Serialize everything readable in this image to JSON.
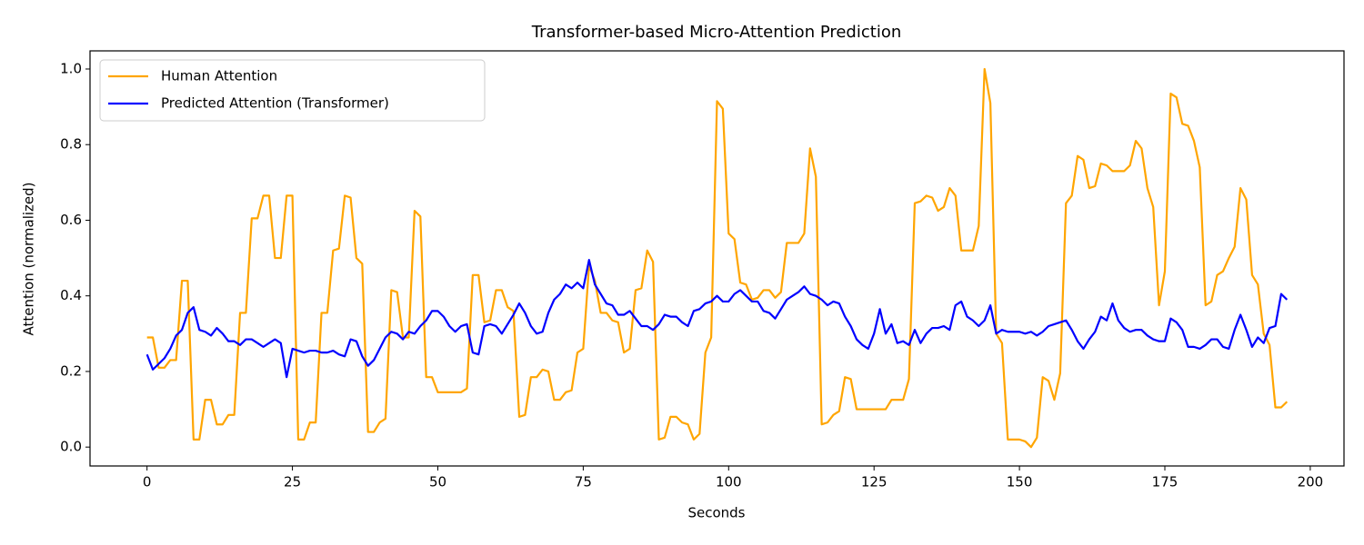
{
  "chart_data": {
    "type": "line",
    "title": "Transformer-based Micro-Attention Prediction",
    "xlabel": "Seconds",
    "ylabel": "Attention (normalized)",
    "legend": "upper left",
    "grid": false,
    "xlim": [
      -9.8,
      205.8
    ],
    "ylim": [
      -0.05,
      1.048
    ],
    "xticks": [
      0,
      25,
      50,
      75,
      100,
      125,
      150,
      175,
      200
    ],
    "yticks": [
      {
        "value": 0,
        "label": "0.0"
      },
      0.2,
      0.4,
      0.6,
      0.8,
      {
        "value": 1,
        "label": "1.0"
      }
    ],
    "x": [
      0,
      1,
      2,
      3,
      4,
      5,
      6,
      7,
      8,
      9,
      10,
      11,
      12,
      13,
      14,
      15,
      16,
      17,
      18,
      19,
      20,
      21,
      22,
      23,
      24,
      25,
      26,
      27,
      28,
      29,
      30,
      31,
      32,
      33,
      34,
      35,
      36,
      37,
      38,
      39,
      40,
      41,
      42,
      43,
      44,
      45,
      46,
      47,
      48,
      49,
      50,
      51,
      52,
      53,
      54,
      55,
      56,
      57,
      58,
      59,
      60,
      61,
      62,
      63,
      64,
      65,
      66,
      67,
      68,
      69,
      70,
      71,
      72,
      73,
      74,
      75,
      76,
      77,
      78,
      79,
      80,
      81,
      82,
      83,
      84,
      85,
      86,
      87,
      88,
      89,
      90,
      91,
      92,
      93,
      94,
      95,
      96,
      97,
      98,
      99,
      100,
      101,
      102,
      103,
      104,
      105,
      106,
      107,
      108,
      109,
      110,
      111,
      112,
      113,
      114,
      115,
      116,
      117,
      118,
      119,
      120,
      121,
      122,
      123,
      124,
      125,
      126,
      127,
      128,
      129,
      130,
      131,
      132,
      133,
      134,
      135,
      136,
      137,
      138,
      139,
      140,
      141,
      142,
      143,
      144,
      145,
      146,
      147,
      148,
      149,
      150,
      151,
      152,
      153,
      154,
      155,
      156,
      157,
      158,
      159,
      160,
      161,
      162,
      163,
      164,
      165,
      166,
      167,
      168,
      169,
      170,
      171,
      172,
      173,
      174,
      175,
      176,
      177,
      178,
      179,
      180,
      181,
      182,
      183,
      184,
      185,
      186,
      187,
      188,
      189,
      190,
      191,
      192,
      193,
      194,
      195,
      196
    ],
    "series": [
      {
        "name": "Human Attention",
        "color": "#ffa500",
        "values": [
          0.29,
          0.29,
          0.21,
          0.21,
          0.23,
          0.23,
          0.44,
          0.44,
          0.02,
          0.02,
          0.125,
          0.125,
          0.06,
          0.06,
          0.085,
          0.085,
          0.355,
          0.355,
          0.605,
          0.605,
          0.665,
          0.665,
          0.5,
          0.5,
          0.665,
          0.665,
          0.02,
          0.02,
          0.065,
          0.065,
          0.355,
          0.355,
          0.52,
          0.525,
          0.665,
          0.66,
          0.5,
          0.485,
          0.04,
          0.04,
          0.065,
          0.075,
          0.415,
          0.41,
          0.29,
          0.29,
          0.625,
          0.61,
          0.185,
          0.185,
          0.145,
          0.145,
          0.145,
          0.145,
          0.145,
          0.155,
          0.455,
          0.455,
          0.33,
          0.335,
          0.415,
          0.415,
          0.37,
          0.36,
          0.08,
          0.085,
          0.185,
          0.185,
          0.205,
          0.2,
          0.125,
          0.125,
          0.145,
          0.15,
          0.25,
          0.26,
          0.48,
          0.44,
          0.355,
          0.355,
          0.335,
          0.33,
          0.25,
          0.26,
          0.415,
          0.42,
          0.52,
          0.49,
          0.02,
          0.025,
          0.08,
          0.08,
          0.065,
          0.06,
          0.02,
          0.035,
          0.25,
          0.29,
          0.915,
          0.895,
          0.565,
          0.55,
          0.435,
          0.43,
          0.39,
          0.395,
          0.415,
          0.415,
          0.395,
          0.41,
          0.54,
          0.54,
          0.54,
          0.565,
          0.79,
          0.715,
          0.06,
          0.065,
          0.085,
          0.095,
          0.185,
          0.18,
          0.1,
          0.1,
          0.1,
          0.1,
          0.1,
          0.1,
          0.125,
          0.125,
          0.125,
          0.18,
          0.645,
          0.65,
          0.665,
          0.66,
          0.625,
          0.635,
          0.685,
          0.665,
          0.52,
          0.52,
          0.52,
          0.585,
          1.0,
          0.91,
          0.3,
          0.275,
          0.02,
          0.02,
          0.02,
          0.015,
          0.0,
          0.025,
          0.185,
          0.175,
          0.125,
          0.195,
          0.645,
          0.665,
          0.77,
          0.76,
          0.685,
          0.69,
          0.75,
          0.745,
          0.73,
          0.73,
          0.73,
          0.745,
          0.81,
          0.79,
          0.685,
          0.635,
          0.375,
          0.465,
          0.935,
          0.925,
          0.855,
          0.85,
          0.81,
          0.74,
          0.375,
          0.385,
          0.455,
          0.465,
          0.5,
          0.53,
          0.685,
          0.655,
          0.455,
          0.43,
          0.3,
          0.27,
          0.105,
          0.105,
          0.12
        ]
      },
      {
        "name": "Predicted Attention (Transformer)",
        "color": "#0000ff",
        "values": [
          0.245,
          0.205,
          0.22,
          0.235,
          0.26,
          0.295,
          0.31,
          0.355,
          0.37,
          0.31,
          0.305,
          0.295,
          0.315,
          0.3,
          0.28,
          0.28,
          0.27,
          0.285,
          0.285,
          0.275,
          0.265,
          0.275,
          0.285,
          0.275,
          0.185,
          0.26,
          0.255,
          0.25,
          0.255,
          0.255,
          0.25,
          0.25,
          0.255,
          0.245,
          0.24,
          0.285,
          0.28,
          0.24,
          0.215,
          0.23,
          0.26,
          0.29,
          0.305,
          0.3,
          0.285,
          0.305,
          0.3,
          0.32,
          0.335,
          0.36,
          0.36,
          0.345,
          0.32,
          0.305,
          0.32,
          0.325,
          0.25,
          0.245,
          0.32,
          0.325,
          0.32,
          0.3,
          0.325,
          0.35,
          0.38,
          0.355,
          0.32,
          0.3,
          0.305,
          0.355,
          0.39,
          0.405,
          0.43,
          0.42,
          0.435,
          0.42,
          0.495,
          0.43,
          0.405,
          0.38,
          0.375,
          0.35,
          0.35,
          0.36,
          0.34,
          0.32,
          0.32,
          0.31,
          0.325,
          0.35,
          0.345,
          0.345,
          0.33,
          0.32,
          0.36,
          0.365,
          0.38,
          0.385,
          0.4,
          0.385,
          0.385,
          0.405,
          0.415,
          0.4,
          0.385,
          0.385,
          0.36,
          0.355,
          0.34,
          0.365,
          0.39,
          0.4,
          0.41,
          0.425,
          0.405,
          0.4,
          0.39,
          0.375,
          0.385,
          0.38,
          0.345,
          0.32,
          0.285,
          0.27,
          0.26,
          0.3,
          0.365,
          0.3,
          0.325,
          0.275,
          0.28,
          0.27,
          0.31,
          0.275,
          0.3,
          0.315,
          0.315,
          0.32,
          0.31,
          0.375,
          0.385,
          0.345,
          0.335,
          0.32,
          0.335,
          0.375,
          0.3,
          0.31,
          0.305,
          0.305,
          0.305,
          0.3,
          0.305,
          0.295,
          0.305,
          0.32,
          0.325,
          0.33,
          0.335,
          0.31,
          0.28,
          0.26,
          0.285,
          0.305,
          0.345,
          0.335,
          0.38,
          0.335,
          0.315,
          0.305,
          0.31,
          0.31,
          0.295,
          0.285,
          0.28,
          0.28,
          0.34,
          0.33,
          0.31,
          0.265,
          0.265,
          0.26,
          0.27,
          0.285,
          0.285,
          0.265,
          0.26,
          0.31,
          0.35,
          0.31,
          0.265,
          0.29,
          0.275,
          0.315,
          0.32,
          0.405,
          0.39
        ]
      }
    ]
  }
}
